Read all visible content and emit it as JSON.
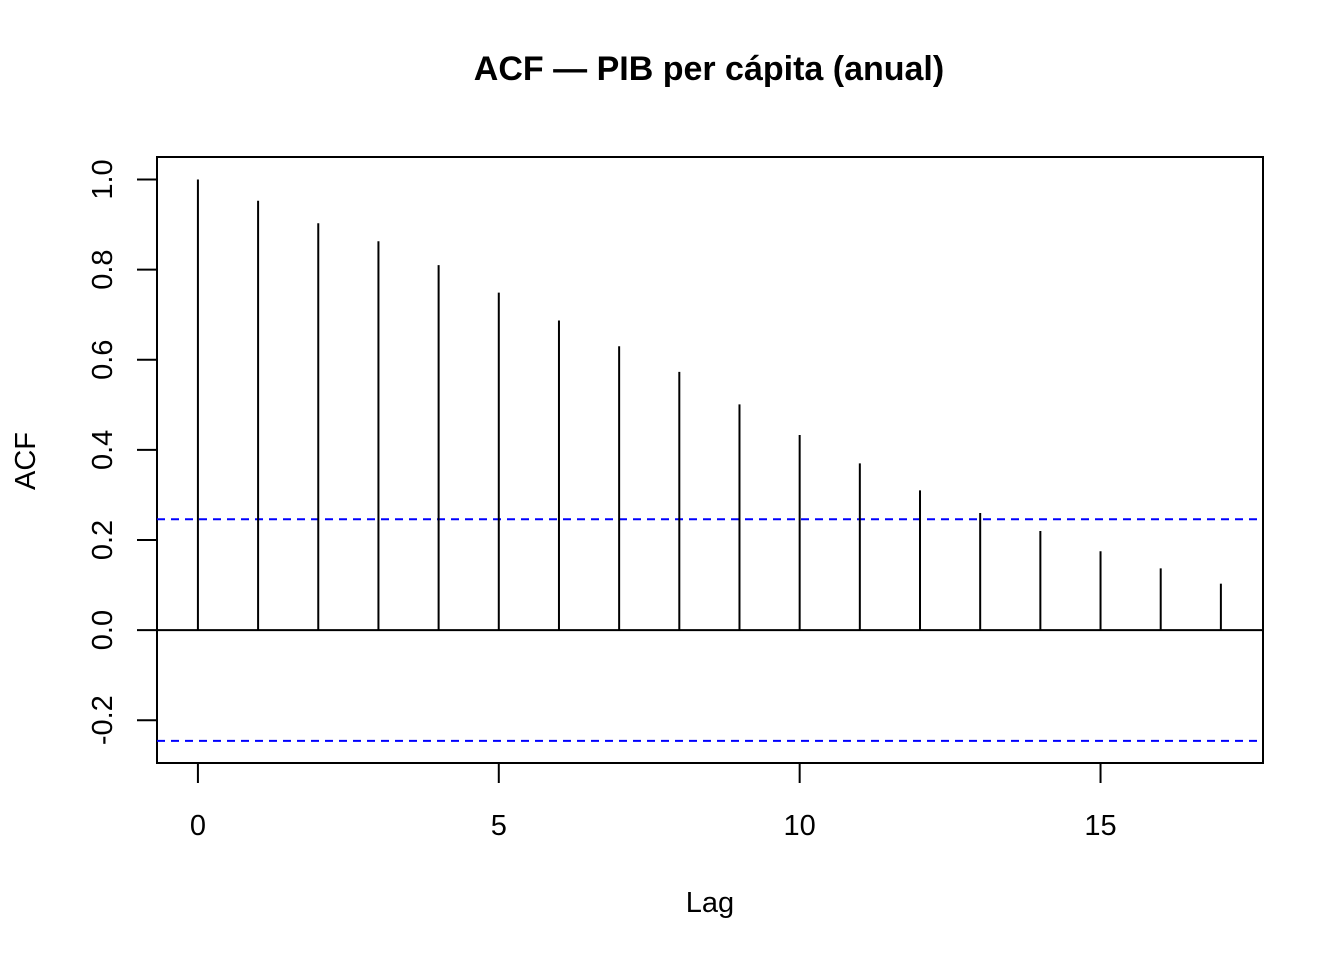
{
  "chart_data": {
    "type": "bar",
    "title": "ACF — PIB per cápita (anual)",
    "xlabel": "Lag",
    "ylabel": "ACF",
    "x": [
      0,
      1,
      2,
      3,
      4,
      5,
      6,
      7,
      8,
      9,
      10,
      11,
      12,
      13,
      14,
      15,
      16,
      17
    ],
    "values": [
      1.0,
      0.953,
      0.903,
      0.863,
      0.81,
      0.749,
      0.687,
      0.63,
      0.573,
      0.501,
      0.433,
      0.37,
      0.31,
      0.26,
      0.22,
      0.175,
      0.137,
      0.103
    ],
    "confidence_bound": 0.246,
    "xlim": [
      -0.68,
      17.7
    ],
    "ylim": [
      -0.295,
      1.05
    ],
    "xticks": [
      0,
      5,
      10,
      15
    ],
    "yticks": [
      -0.2,
      0.0,
      0.2,
      0.4,
      0.6,
      0.8,
      1.0
    ],
    "ytick_labels": [
      "-0.2",
      "0.0",
      "0.2",
      "0.4",
      "0.6",
      "0.8",
      "1.0"
    ],
    "bar_color": "#000000",
    "bound_color": "#0000ff",
    "grid": false
  }
}
